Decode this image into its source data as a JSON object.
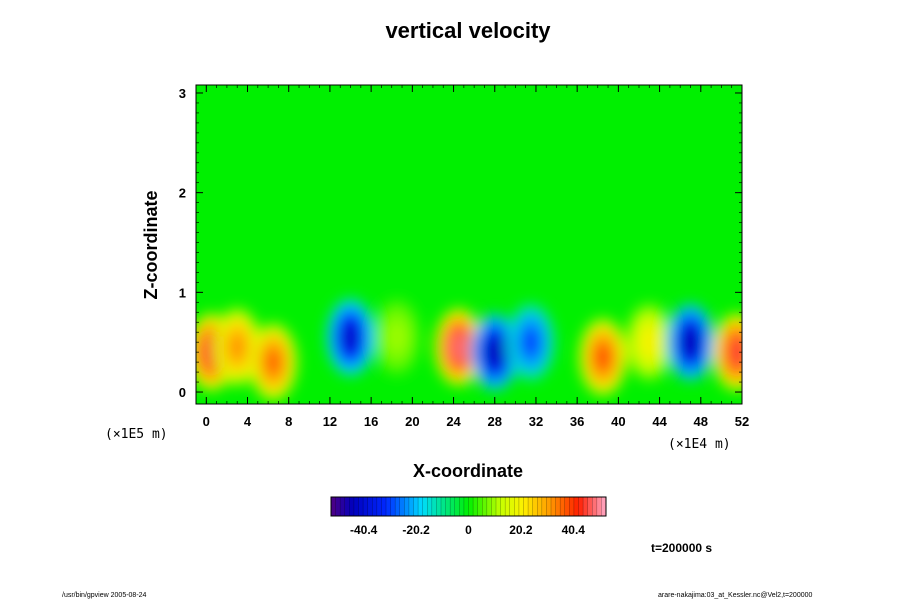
{
  "chart_data": {
    "type": "heatmap",
    "title": "vertical velocity",
    "xlabel": "X-coordinate",
    "ylabel": "Z-coordinate",
    "x_unit": "(×1E4 m)",
    "y_unit": "(×1E5 m)",
    "x_ticks": [
      "0",
      "4",
      "8",
      "12",
      "16",
      "20",
      "24",
      "28",
      "32",
      "36",
      "40",
      "44",
      "48",
      "52"
    ],
    "y_ticks": [
      "0",
      "1",
      "2",
      "3"
    ],
    "xlim": [
      -1,
      52
    ],
    "ylim": [
      -0.12,
      3.08
    ],
    "colorbar": {
      "ticks": [
        "-40.4",
        "-20.2",
        "0",
        "20.2",
        "40.4"
      ],
      "tick_values": [
        -40.4,
        -20.2,
        0,
        20.2,
        40.4
      ],
      "range": [
        -53,
        53
      ]
    },
    "cells": [
      {
        "x": 0.5,
        "z": 0.4,
        "value": 45
      },
      {
        "x": 3,
        "z": 0.45,
        "value": 32
      },
      {
        "x": 6.5,
        "z": 0.3,
        "value": 36
      },
      {
        "x": 14,
        "z": 0.55,
        "value": -42
      },
      {
        "x": 18.5,
        "z": 0.55,
        "value": 10
      },
      {
        "x": 24.5,
        "z": 0.45,
        "value": 48
      },
      {
        "x": 28,
        "z": 0.4,
        "value": -45
      },
      {
        "x": 31.5,
        "z": 0.5,
        "value": -30
      },
      {
        "x": 38.5,
        "z": 0.35,
        "value": 38
      },
      {
        "x": 43,
        "z": 0.5,
        "value": 20
      },
      {
        "x": 47,
        "z": 0.5,
        "value": -45
      },
      {
        "x": 51.5,
        "z": 0.4,
        "value": 45
      }
    ],
    "time_label": "t=200000 s"
  },
  "footer": {
    "left": "/usr/bin/gpview 2005-08-24",
    "right": "arare-nakajima:03_at_Kessler.nc@Vel2,t=200000"
  }
}
